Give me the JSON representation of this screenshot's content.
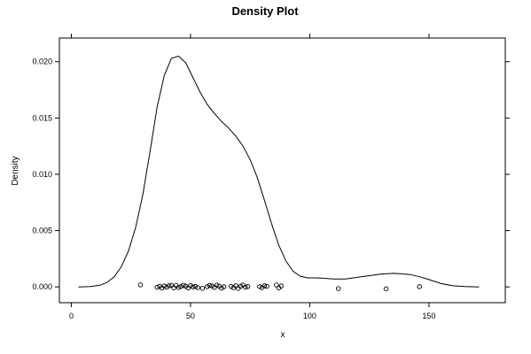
{
  "chart_data": {
    "type": "line",
    "title": "Density Plot",
    "xlabel": "x",
    "ylabel": "Density",
    "xlim": [
      -5,
      182
    ],
    "ylim": [
      -0.0014,
      0.0221
    ],
    "xticks": [
      0,
      50,
      100,
      150
    ],
    "xtick_labels": [
      "0",
      "50",
      "100",
      "150"
    ],
    "yticks": [
      0,
      0.005,
      0.01,
      0.015,
      0.02
    ],
    "ytick_labels": [
      "0.000",
      "0.005",
      "0.010",
      "0.015",
      "0.020"
    ],
    "grid": false,
    "series": [
      {
        "x": [
          3,
          8,
          12,
          15,
          18,
          21,
          24,
          27,
          30,
          33,
          36,
          39,
          42,
          45,
          48,
          51,
          54,
          57,
          60,
          63,
          66,
          69,
          72,
          75,
          78,
          81,
          84,
          87,
          90,
          93,
          96,
          99,
          102,
          105,
          110,
          115,
          120,
          125,
          130,
          135,
          138,
          142,
          146,
          150,
          155,
          160,
          165,
          171
        ],
        "y": [
          0.0,
          3e-05,
          0.00015,
          0.0004,
          0.0009,
          0.0018,
          0.0032,
          0.0053,
          0.0082,
          0.012,
          0.016,
          0.0188,
          0.0203,
          0.0205,
          0.0199,
          0.0186,
          0.0173,
          0.0162,
          0.0154,
          0.0147,
          0.0141,
          0.0134,
          0.0125,
          0.0113,
          0.0097,
          0.0077,
          0.0056,
          0.0037,
          0.0023,
          0.0014,
          0.00095,
          0.0008,
          0.0008,
          0.00078,
          0.0007,
          0.0007,
          0.00085,
          0.001,
          0.00115,
          0.0012,
          0.00118,
          0.0011,
          0.0009,
          0.00065,
          0.0003,
          0.0001,
          3e-05,
          0.0
        ]
      }
    ],
    "rug_points": {
      "x": [
        29,
        36,
        37,
        38,
        39,
        40,
        41,
        42,
        43,
        44,
        45,
        46,
        47,
        48,
        49,
        50,
        51,
        52,
        53,
        55,
        57,
        58,
        59,
        60,
        61,
        62,
        63,
        64,
        67,
        68,
        69,
        70,
        71,
        72,
        73,
        74,
        79,
        80,
        81,
        82,
        86,
        87,
        88,
        112,
        132,
        146
      ],
      "y": [
        0.00018,
        -3e-05,
        5e-05,
        -0.0001,
        8e-05,
        -2e-05,
        0.0001,
        0.00015,
        -8e-05,
        0.00012,
        -5e-05,
        3e-05,
        0.00014,
        6e-05,
        -9e-05,
        0.00011,
        0.0,
        4e-05,
        -6e-05,
        -0.00012,
        2e-05,
        0.00013,
        9e-05,
        -4e-05,
        0.00016,
        7e-05,
        -0.00011,
        1e-05,
        4e-05,
        -7e-05,
        0.0001,
        -0.00013,
        6e-05,
        0.00017,
        -2e-05,
        3e-05,
        2e-05,
        -6e-05,
        0.0001,
        5e-05,
        0.00017,
        -0.0001,
        8e-05,
        -0.00015,
        -0.00017,
        2e-05
      ]
    }
  }
}
